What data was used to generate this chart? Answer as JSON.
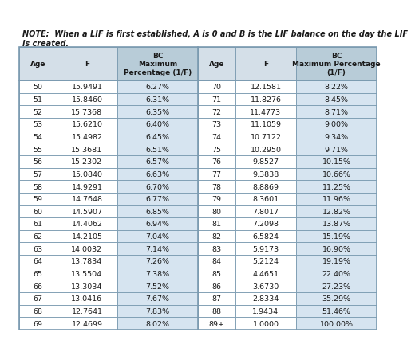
{
  "note_line1": "NOTE:  When a LIF is first established, A is 0 and B is the LIF balance on the day the LIF",
  "note_line2": "is created.",
  "headers_left": [
    "Age",
    "F",
    "BC\nMaximum\nPercentage (1/F)"
  ],
  "headers_right": [
    "Age",
    "F",
    "BC\nMaximum Percentage\n(1/F)"
  ],
  "left_data": [
    [
      "50",
      "15.9491",
      "6.27%"
    ],
    [
      "51",
      "15.8460",
      "6.31%"
    ],
    [
      "52",
      "15.7368",
      "6.35%"
    ],
    [
      "53",
      "15.6210",
      "6.40%"
    ],
    [
      "54",
      "15.4982",
      "6.45%"
    ],
    [
      "55",
      "15.3681",
      "6.51%"
    ],
    [
      "56",
      "15.2302",
      "6.57%"
    ],
    [
      "57",
      "15.0840",
      "6.63%"
    ],
    [
      "58",
      "14.9291",
      "6.70%"
    ],
    [
      "59",
      "14.7648",
      "6.77%"
    ],
    [
      "60",
      "14.5907",
      "6.85%"
    ],
    [
      "61",
      "14.4062",
      "6.94%"
    ],
    [
      "62",
      "14.2105",
      "7.04%"
    ],
    [
      "63",
      "14.0032",
      "7.14%"
    ],
    [
      "64",
      "13.7834",
      "7.26%"
    ],
    [
      "65",
      "13.5504",
      "7.38%"
    ],
    [
      "66",
      "13.3034",
      "7.52%"
    ],
    [
      "67",
      "13.0416",
      "7.67%"
    ],
    [
      "68",
      "12.7641",
      "7.83%"
    ],
    [
      "69",
      "12.4699",
      "8.02%"
    ]
  ],
  "right_data": [
    [
      "70",
      "12.1581",
      "8.22%"
    ],
    [
      "71",
      "11.8276",
      "8.45%"
    ],
    [
      "72",
      "11.4773",
      "8.71%"
    ],
    [
      "73",
      "11.1059",
      "9.00%"
    ],
    [
      "74",
      "10.7122",
      "9.34%"
    ],
    [
      "75",
      "10.2950",
      "9.71%"
    ],
    [
      "76",
      "9.8527",
      "10.15%"
    ],
    [
      "77",
      "9.3838",
      "10.66%"
    ],
    [
      "78",
      "8.8869",
      "11.25%"
    ],
    [
      "79",
      "8.3601",
      "11.96%"
    ],
    [
      "80",
      "7.8017",
      "12.82%"
    ],
    [
      "81",
      "7.2098",
      "13.87%"
    ],
    [
      "82",
      "6.5824",
      "15.19%"
    ],
    [
      "83",
      "5.9173",
      "16.90%"
    ],
    [
      "84",
      "5.2124",
      "19.19%"
    ],
    [
      "85",
      "4.4651",
      "22.40%"
    ],
    [
      "86",
      "3.6730",
      "27.23%"
    ],
    [
      "87",
      "2.8334",
      "35.29%"
    ],
    [
      "88",
      "1.9434",
      "51.46%"
    ],
    [
      "89+",
      "1.0000",
      "100.00%"
    ]
  ],
  "bg_color": "#ffffff",
  "header_bg_white": "#d4dfe8",
  "header_bg_blue": "#b8ccd8",
  "row_bg_white": "#ffffff",
  "row_bg_blue": "#d6e4f0",
  "border_color": "#7a9ab0",
  "text_color": "#1a1a1a",
  "font_size_note": 7.0,
  "font_size_header": 6.5,
  "font_size_data": 6.8
}
